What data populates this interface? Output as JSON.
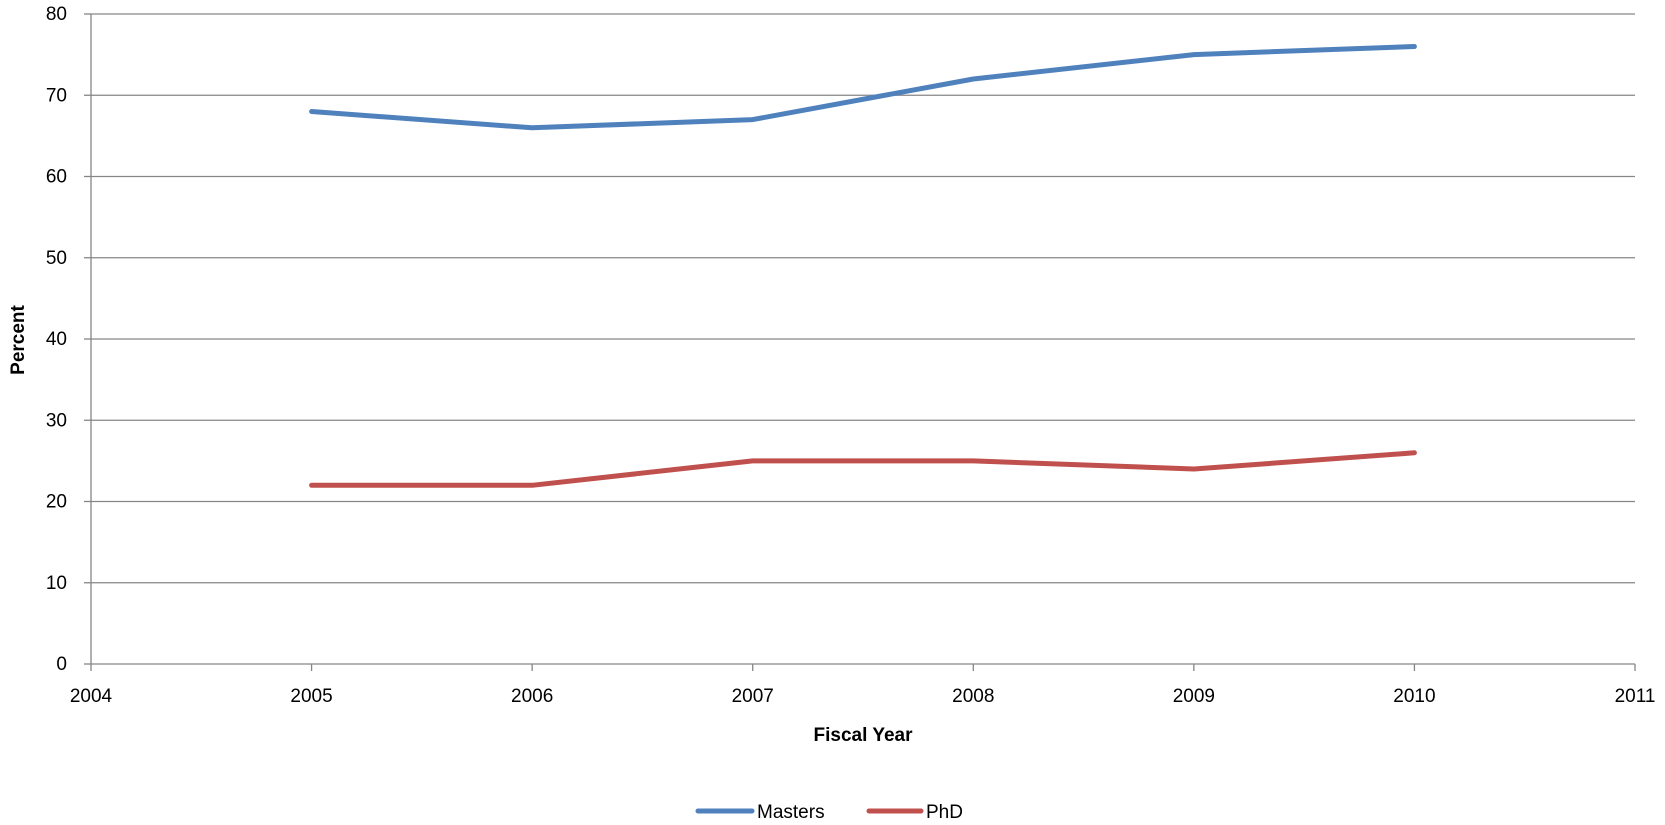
{
  "chart_data": {
    "type": "line",
    "title": "",
    "xlabel": "Fiscal Year",
    "ylabel": "Percent",
    "xlim": [
      2004,
      2011
    ],
    "ylim": [
      0,
      80
    ],
    "x_ticks": [
      2004,
      2005,
      2006,
      2007,
      2008,
      2009,
      2010,
      2011
    ],
    "y_ticks": [
      0,
      10,
      20,
      30,
      40,
      50,
      60,
      70,
      80
    ],
    "grid": "horizontal",
    "legend_position": "bottom",
    "x": [
      2005,
      2006,
      2007,
      2008,
      2009,
      2010
    ],
    "series": [
      {
        "name": "Masters",
        "color": "#4F81BD",
        "values": [
          68,
          66,
          67,
          72,
          75,
          76
        ]
      },
      {
        "name": "PhD",
        "color": "#C0504D",
        "values": [
          22,
          22,
          25,
          25,
          24,
          26
        ]
      }
    ]
  }
}
